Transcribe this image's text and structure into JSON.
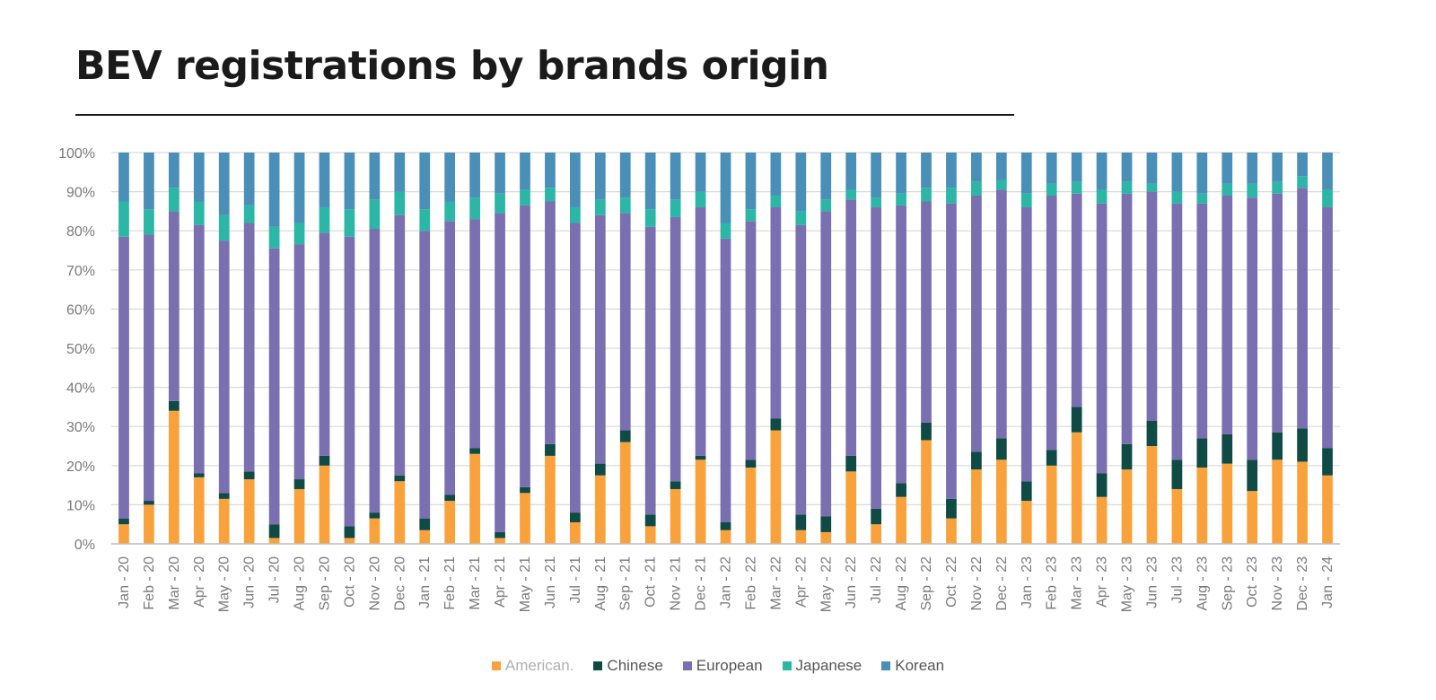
{
  "chart_data": {
    "type": "bar",
    "stacked": true,
    "title": "BEV registrations by brands origin",
    "categories": [
      "Jan - 20",
      "Feb - 20",
      "Mar - 20",
      "Apr - 20",
      "May - 20",
      "Jun - 20",
      "Jul - 20",
      "Aug - 20",
      "Sep - 20",
      "Oct - 20",
      "Nov - 20",
      "Dec - 20",
      "Jan - 21",
      "Feb - 21",
      "Mar - 21",
      "Apr - 21",
      "May - 21",
      "Jun - 21",
      "Jul - 21",
      "Aug - 21",
      "Sep - 21",
      "Oct - 21",
      "Nov - 21",
      "Dec - 21",
      "Jan - 22",
      "Feb - 22",
      "Mar - 22",
      "Apr - 22",
      "May - 22",
      "Jun - 22",
      "Jul - 22",
      "Aug - 22",
      "Sep - 22",
      "Oct - 22",
      "Nov - 22",
      "Dec - 22",
      "Jan - 23",
      "Feb - 23",
      "Mar - 23",
      "Apr - 23",
      "May - 23",
      "Jun - 23",
      "Jul - 23",
      "Aug - 23",
      "Sep - 23",
      "Oct - 23",
      "Nov - 23",
      "Dec - 23",
      "Jan - 24"
    ],
    "series": [
      {
        "name": "American.",
        "color": "#f9a23c",
        "values": [
          5,
          10,
          34,
          17,
          11.5,
          16.5,
          1.5,
          14,
          20,
          1.5,
          6.5,
          16,
          3.5,
          11,
          23,
          1.5,
          13,
          22.5,
          5.5,
          17.5,
          26,
          4.5,
          14,
          21.5,
          3.5,
          19.5,
          29,
          3.5,
          3,
          18.5,
          5,
          12,
          26.5,
          6.5,
          19,
          21.5,
          11,
          20,
          28.5,
          12,
          19,
          25,
          14,
          19.5,
          20.5,
          13.5,
          21.5,
          21,
          17.5
        ]
      },
      {
        "name": "Chinese",
        "color": "#0f4a44",
        "values": [
          1.5,
          1,
          2.5,
          1,
          1.5,
          2,
          3.5,
          2.5,
          2.5,
          3,
          1.5,
          1.5,
          3,
          1.5,
          1.5,
          1.5,
          1.5,
          3,
          2.5,
          3,
          3,
          3,
          2,
          1,
          2,
          2,
          3,
          4,
          4,
          4,
          4,
          3.5,
          4.5,
          5,
          4.5,
          5.5,
          5,
          4,
          6.5,
          6,
          6.5,
          6.5,
          7.5,
          7.5,
          7.5,
          8,
          7,
          8.5,
          7
        ]
      },
      {
        "name": "European",
        "color": "#7a6fb0",
        "values": [
          72,
          68,
          48.5,
          63.5,
          64.5,
          63.5,
          70.5,
          60,
          57,
          74,
          72.5,
          66.5,
          73.5,
          70,
          58.5,
          81.5,
          72,
          62,
          74,
          63.5,
          55.5,
          73.5,
          67.5,
          63.5,
          72.5,
          61,
          54,
          74,
          78,
          65.5,
          77,
          71,
          56.5,
          75.5,
          65.5,
          63.5,
          70,
          65,
          54.5,
          69,
          64,
          58.5,
          65.5,
          60,
          61,
          67,
          61,
          61.5,
          61.5
        ]
      },
      {
        "name": "Japanese",
        "color": "#2bb6a6",
        "values": [
          9,
          6.5,
          6,
          6,
          6.5,
          4.5,
          5.5,
          5.5,
          6.5,
          7,
          7.5,
          6,
          5.5,
          5,
          5.5,
          5,
          4,
          3.5,
          4,
          4,
          4,
          4.5,
          4.5,
          4,
          4,
          3,
          3,
          3.5,
          3,
          2.5,
          2.5,
          3,
          3.5,
          4,
          3.5,
          2.5,
          3.5,
          3,
          3,
          3.5,
          3,
          2,
          3,
          2.5,
          3,
          3.5,
          3,
          3,
          4.5
        ]
      },
      {
        "name": "Korean",
        "color": "#4a8fb8",
        "values": [
          12.5,
          14.5,
          9,
          12.5,
          16,
          13.5,
          19,
          18,
          14,
          14.5,
          12,
          10,
          14.5,
          12.5,
          11.5,
          10.5,
          9.5,
          9,
          14,
          12,
          11.5,
          14.5,
          12,
          10,
          18,
          14.5,
          11,
          15,
          12,
          9.5,
          11.5,
          10.5,
          9,
          9,
          7.5,
          7,
          10.5,
          8,
          7.5,
          9.5,
          7.5,
          8,
          10,
          10.5,
          8,
          8,
          7.5,
          6,
          9.5
        ]
      }
    ],
    "ylim": [
      0,
      100
    ],
    "yticks": [
      "0%",
      "10%",
      "20%",
      "30%",
      "40%",
      "50%",
      "60%",
      "70%",
      "80%",
      "90%",
      "100%"
    ],
    "xlabel": "",
    "ylabel": "",
    "grid": true,
    "legend_position": "bottom"
  }
}
